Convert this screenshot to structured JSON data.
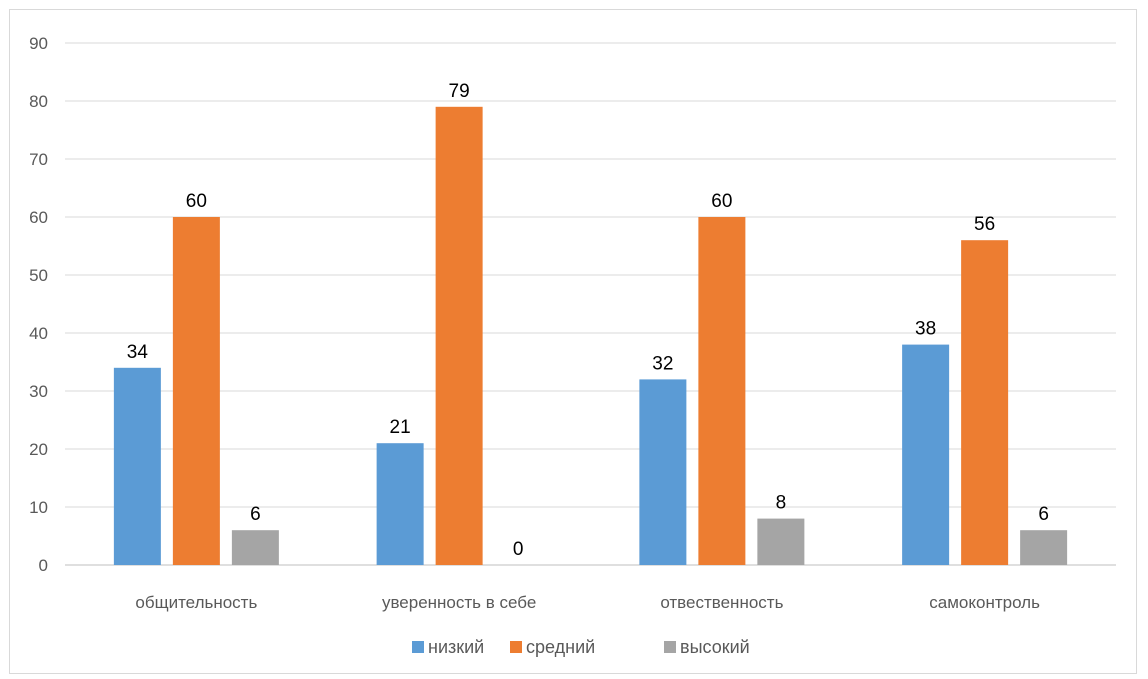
{
  "chart_data": {
    "type": "bar",
    "title": "",
    "xlabel": "",
    "ylabel": "",
    "categories": [
      "общительность",
      "уверенность в себе",
      "отвественность",
      "самоконтроль"
    ],
    "series": [
      {
        "name": "низкий",
        "color": "#5b9bd5",
        "values": [
          34,
          21,
          32,
          38
        ]
      },
      {
        "name": "средний",
        "color": "#ed7d31",
        "values": [
          60,
          79,
          60,
          56
        ]
      },
      {
        "name": "высокий",
        "color": "#a5a5a5",
        "values": [
          6,
          0,
          8,
          6
        ]
      }
    ],
    "ylim": [
      0,
      90
    ],
    "yticks": [
      0,
      10,
      20,
      30,
      40,
      50,
      60,
      70,
      80,
      90
    ],
    "grid": true,
    "legend_position": "bottom",
    "data_labels": true
  }
}
